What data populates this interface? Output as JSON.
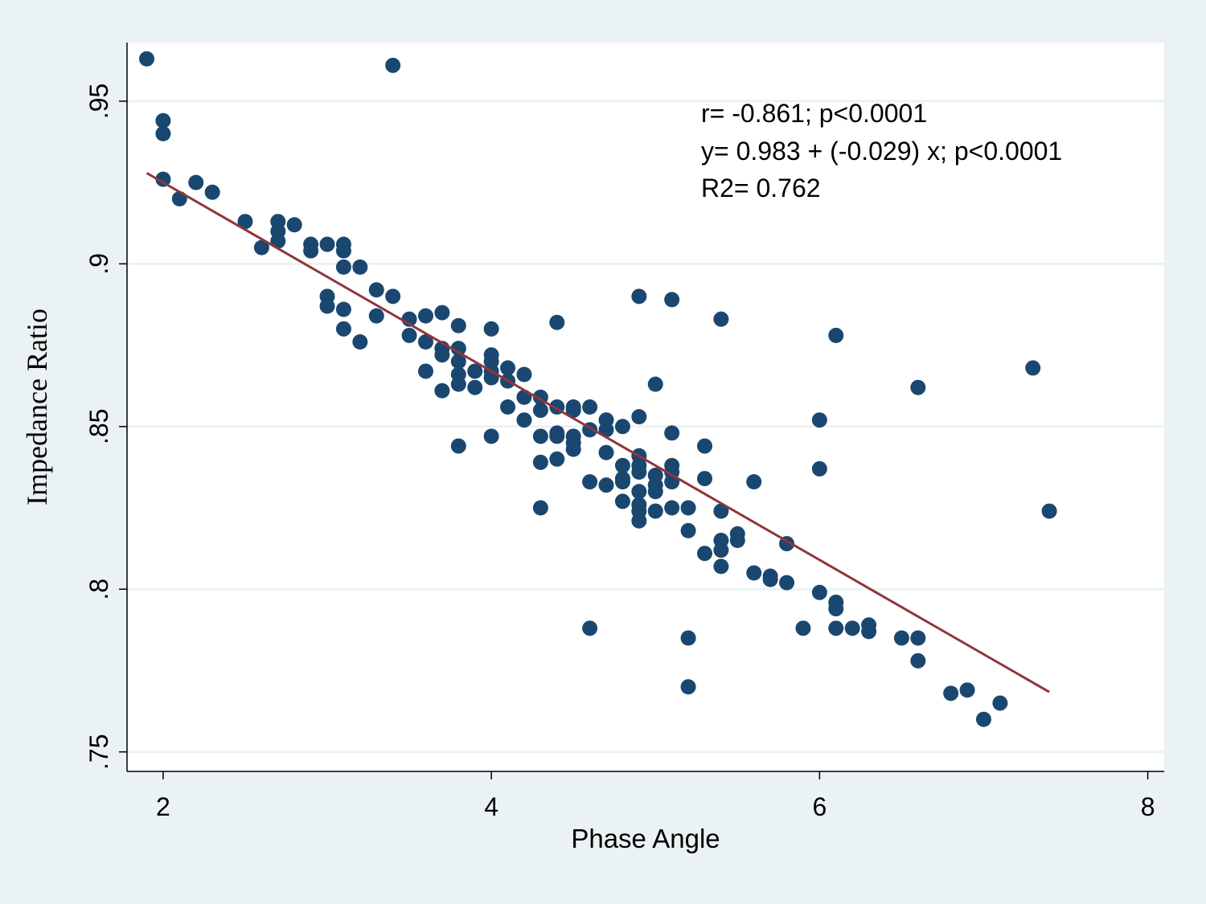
{
  "colors": {
    "outer_background": "#eaf2f3",
    "plot_background": "#ffffff",
    "gridline": "#eaf2f3",
    "marker": "#1a476f",
    "fit_line": "#90353b",
    "axis": "#000000"
  },
  "chart_data": {
    "type": "scatter",
    "title": "",
    "xlabel": "Phase Angle",
    "ylabel": "Impedance Ratio",
    "xlim": [
      1.78,
      8.1
    ],
    "ylim": [
      0.744,
      0.968
    ],
    "xticks": [
      2,
      4,
      6,
      8
    ],
    "xtick_labels": [
      "2",
      "4",
      "6",
      "8"
    ],
    "yticks": [
      0.75,
      0.8,
      0.85,
      0.9,
      0.95
    ],
    "ytick_labels": [
      ".75",
      ".8",
      ".85",
      ".9",
      ".95"
    ],
    "grid": true,
    "annotations": [
      "r= -0.861; p<0.0001",
      "y= 0.983 + (-0.029) x; p<0.0001",
      "R2= 0.762"
    ],
    "fit_line": {
      "intercept": 0.983,
      "slope": -0.029,
      "x_range": [
        1.9,
        7.4
      ]
    },
    "points": [
      [
        1.9,
        0.963
      ],
      [
        3.4,
        0.961
      ],
      [
        2.0,
        0.944
      ],
      [
        2.0,
        0.94
      ],
      [
        2.0,
        0.926
      ],
      [
        2.1,
        0.92
      ],
      [
        2.2,
        0.925
      ],
      [
        2.3,
        0.922
      ],
      [
        2.5,
        0.913
      ],
      [
        2.6,
        0.905
      ],
      [
        2.7,
        0.913
      ],
      [
        2.7,
        0.91
      ],
      [
        2.7,
        0.907
      ],
      [
        2.8,
        0.912
      ],
      [
        2.9,
        0.906
      ],
      [
        2.9,
        0.904
      ],
      [
        3.0,
        0.906
      ],
      [
        3.1,
        0.906
      ],
      [
        3.1,
        0.904
      ],
      [
        3.1,
        0.899
      ],
      [
        3.2,
        0.899
      ],
      [
        3.0,
        0.89
      ],
      [
        3.0,
        0.887
      ],
      [
        3.1,
        0.886
      ],
      [
        3.1,
        0.88
      ],
      [
        3.2,
        0.876
      ],
      [
        3.3,
        0.892
      ],
      [
        3.3,
        0.884
      ],
      [
        3.4,
        0.89
      ],
      [
        3.5,
        0.883
      ],
      [
        3.5,
        0.878
      ],
      [
        3.6,
        0.884
      ],
      [
        3.6,
        0.876
      ],
      [
        3.6,
        0.867
      ],
      [
        3.7,
        0.885
      ],
      [
        3.7,
        0.874
      ],
      [
        3.7,
        0.872
      ],
      [
        3.7,
        0.861
      ],
      [
        3.8,
        0.881
      ],
      [
        3.8,
        0.874
      ],
      [
        3.8,
        0.87
      ],
      [
        3.8,
        0.866
      ],
      [
        3.8,
        0.863
      ],
      [
        3.8,
        0.844
      ],
      [
        3.9,
        0.867
      ],
      [
        3.9,
        0.862
      ],
      [
        4.0,
        0.88
      ],
      [
        4.0,
        0.872
      ],
      [
        4.0,
        0.87
      ],
      [
        4.0,
        0.867
      ],
      [
        4.0,
        0.865
      ],
      [
        4.0,
        0.847
      ],
      [
        4.1,
        0.868
      ],
      [
        4.1,
        0.864
      ],
      [
        4.1,
        0.856
      ],
      [
        4.2,
        0.866
      ],
      [
        4.2,
        0.859
      ],
      [
        4.2,
        0.852
      ],
      [
        4.3,
        0.859
      ],
      [
        4.3,
        0.855
      ],
      [
        4.3,
        0.847
      ],
      [
        4.3,
        0.839
      ],
      [
        4.3,
        0.825
      ],
      [
        4.4,
        0.882
      ],
      [
        4.4,
        0.856
      ],
      [
        4.4,
        0.848
      ],
      [
        4.4,
        0.847
      ],
      [
        4.4,
        0.84
      ],
      [
        4.5,
        0.856
      ],
      [
        4.5,
        0.855
      ],
      [
        4.5,
        0.847
      ],
      [
        4.5,
        0.845
      ],
      [
        4.5,
        0.843
      ],
      [
        4.6,
        0.856
      ],
      [
        4.6,
        0.849
      ],
      [
        4.6,
        0.833
      ],
      [
        4.6,
        0.788
      ],
      [
        4.7,
        0.852
      ],
      [
        4.7,
        0.849
      ],
      [
        4.7,
        0.842
      ],
      [
        4.7,
        0.832
      ],
      [
        4.8,
        0.85
      ],
      [
        4.8,
        0.838
      ],
      [
        4.8,
        0.834
      ],
      [
        4.8,
        0.833
      ],
      [
        4.8,
        0.827
      ],
      [
        4.9,
        0.89
      ],
      [
        4.9,
        0.853
      ],
      [
        4.9,
        0.841
      ],
      [
        4.9,
        0.838
      ],
      [
        4.9,
        0.836
      ],
      [
        4.9,
        0.83
      ],
      [
        4.9,
        0.826
      ],
      [
        4.9,
        0.824
      ],
      [
        4.9,
        0.821
      ],
      [
        5.0,
        0.863
      ],
      [
        5.0,
        0.835
      ],
      [
        5.0,
        0.832
      ],
      [
        5.0,
        0.83
      ],
      [
        5.0,
        0.824
      ],
      [
        5.1,
        0.889
      ],
      [
        5.1,
        0.848
      ],
      [
        5.1,
        0.838
      ],
      [
        5.1,
        0.836
      ],
      [
        5.1,
        0.833
      ],
      [
        5.1,
        0.825
      ],
      [
        5.2,
        0.825
      ],
      [
        5.2,
        0.818
      ],
      [
        5.2,
        0.785
      ],
      [
        5.2,
        0.77
      ],
      [
        5.3,
        0.844
      ],
      [
        5.3,
        0.834
      ],
      [
        5.3,
        0.811
      ],
      [
        5.4,
        0.883
      ],
      [
        5.4,
        0.824
      ],
      [
        5.4,
        0.815
      ],
      [
        5.4,
        0.812
      ],
      [
        5.4,
        0.807
      ],
      [
        5.5,
        0.817
      ],
      [
        5.5,
        0.815
      ],
      [
        5.6,
        0.833
      ],
      [
        5.6,
        0.805
      ],
      [
        5.7,
        0.804
      ],
      [
        5.7,
        0.803
      ],
      [
        5.8,
        0.814
      ],
      [
        5.8,
        0.802
      ],
      [
        5.9,
        0.788
      ],
      [
        6.0,
        0.852
      ],
      [
        6.0,
        0.837
      ],
      [
        6.0,
        0.799
      ],
      [
        6.1,
        0.878
      ],
      [
        6.1,
        0.796
      ],
      [
        6.1,
        0.794
      ],
      [
        6.1,
        0.788
      ],
      [
        6.2,
        0.788
      ],
      [
        6.3,
        0.789
      ],
      [
        6.3,
        0.787
      ],
      [
        6.5,
        0.785
      ],
      [
        6.6,
        0.862
      ],
      [
        6.6,
        0.785
      ],
      [
        6.6,
        0.778
      ],
      [
        6.8,
        0.768
      ],
      [
        6.9,
        0.769
      ],
      [
        7.0,
        0.76
      ],
      [
        7.1,
        0.765
      ],
      [
        7.3,
        0.868
      ],
      [
        7.4,
        0.824
      ]
    ]
  }
}
